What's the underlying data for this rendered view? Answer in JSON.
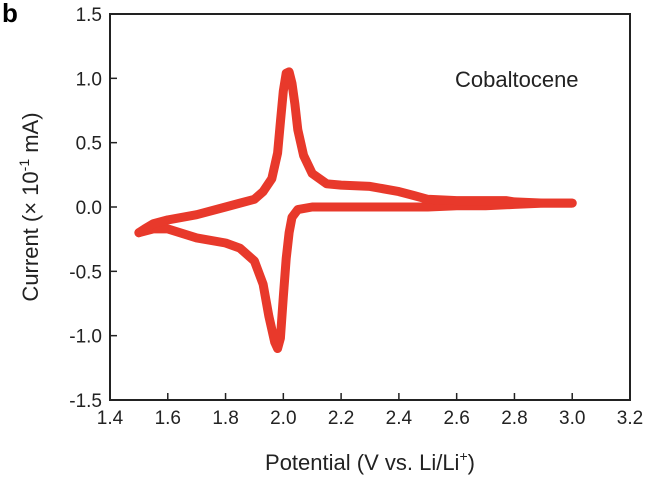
{
  "chart_data": {
    "type": "line",
    "panel_label": "b",
    "annotation": "Cobaltocene",
    "xlabel": "Potential (V vs. Li/Li",
    "xlabel_sup": "+",
    "xlabel_end": ")",
    "ylabel_pre": "Current (× 10",
    "ylabel_sup": "-1",
    "ylabel_end": " mA)",
    "xlim": [
      1.4,
      3.2
    ],
    "ylim": [
      -1.5,
      1.5
    ],
    "xticks": [
      "1.4",
      "1.6",
      "1.8",
      "2.0",
      "2.2",
      "2.4",
      "2.6",
      "2.8",
      "3.0",
      "3.2"
    ],
    "yticks": [
      "1.5",
      "1.0",
      "0.5",
      "0.0",
      "-0.5",
      "-1.0",
      "-1.5"
    ],
    "grid": false,
    "line_color": "#e8392b",
    "series": [
      {
        "x": [
          1.5,
          1.55,
          1.6,
          1.7,
          1.8,
          1.85,
          1.9,
          1.93,
          1.95,
          1.97,
          1.98,
          1.99,
          2.0,
          2.01,
          2.02,
          2.03,
          2.05,
          2.1,
          2.2,
          2.3,
          2.4,
          2.5,
          2.6,
          2.7,
          2.8,
          2.9,
          3.0
        ],
        "y": [
          -0.2,
          -0.17,
          -0.17,
          -0.24,
          -0.28,
          -0.32,
          -0.42,
          -0.6,
          -0.85,
          -1.05,
          -1.1,
          -1.02,
          -0.7,
          -0.4,
          -0.2,
          -0.08,
          -0.02,
          0.0,
          0.0,
          0.0,
          0.0,
          0.0,
          0.01,
          0.01,
          0.02,
          0.03,
          0.03
        ]
      },
      {
        "x": [
          3.0,
          2.9,
          2.8,
          2.77,
          2.7,
          2.6,
          2.5,
          2.45,
          2.4,
          2.3,
          2.2,
          2.15,
          2.1,
          2.07,
          2.05,
          2.04,
          2.03,
          2.02,
          2.01,
          2.0,
          1.99,
          1.98,
          1.96,
          1.93,
          1.9,
          1.85,
          1.8,
          1.7,
          1.6,
          1.55,
          1.52,
          1.5
        ],
        "y": [
          0.03,
          0.03,
          0.04,
          0.05,
          0.05,
          0.05,
          0.06,
          0.09,
          0.12,
          0.16,
          0.17,
          0.18,
          0.26,
          0.4,
          0.6,
          0.8,
          0.96,
          1.05,
          1.04,
          0.9,
          0.66,
          0.42,
          0.22,
          0.12,
          0.06,
          0.03,
          0.0,
          -0.06,
          -0.1,
          -0.13,
          -0.17,
          -0.2
        ]
      }
    ]
  }
}
